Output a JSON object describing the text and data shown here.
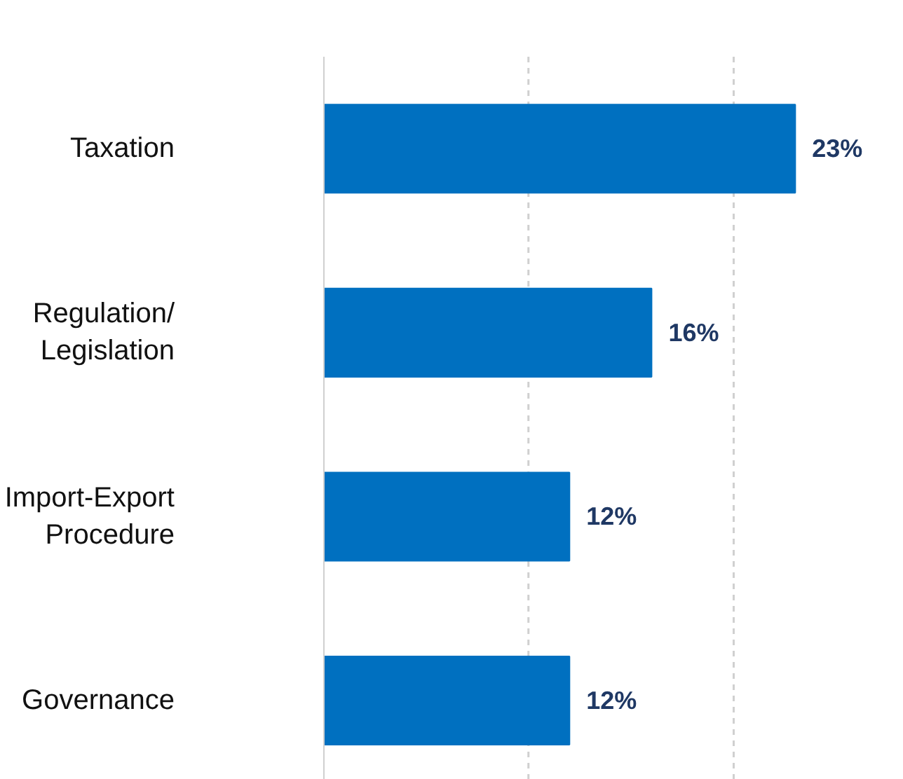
{
  "chart_data": {
    "type": "bar",
    "orientation": "horizontal",
    "categories": [
      "Taxation",
      "Regulation/\nLegislation",
      "Import-Export\nProcedure",
      "Governance"
    ],
    "values": [
      23,
      16,
      12,
      12
    ],
    "color": "#0070c0",
    "value_labels": [
      "23%",
      "16%",
      "12%",
      "12%"
    ],
    "ref_lines": [
      {
        "axis": "x",
        "value": 10,
        "color": "#d0d0d0",
        "line_style": "dashed"
      },
      {
        "axis": "x",
        "value": 20,
        "color": "#d0d0d0",
        "line_style": "dashed"
      }
    ],
    "tick_labels": "y"
  }
}
